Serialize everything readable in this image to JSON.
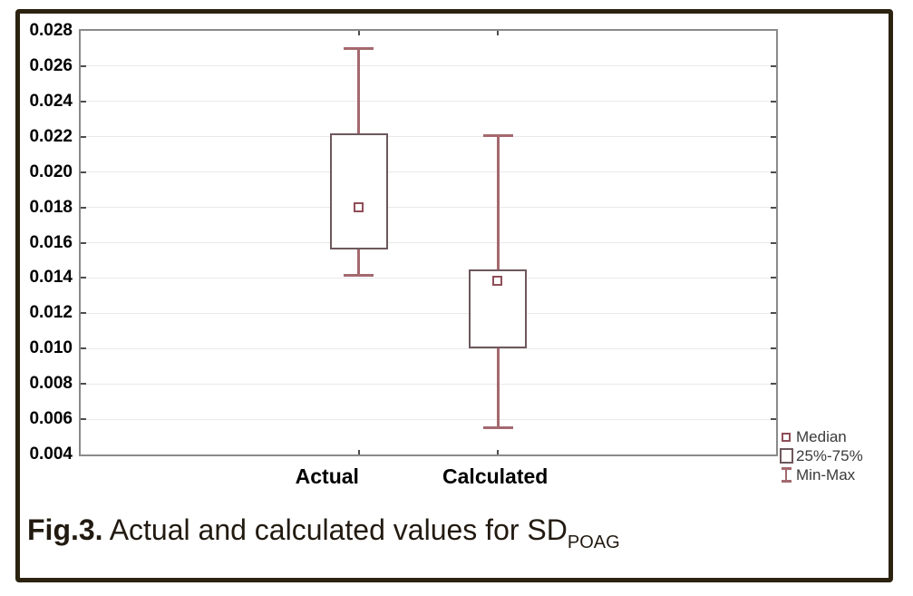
{
  "figure_caption": {
    "prefix": "Fig.3.",
    "text": " Actual and calculated values for SD",
    "subscript": "POAG"
  },
  "legend": {
    "items": [
      {
        "label": "Median",
        "icon": "median-marker-icon"
      },
      {
        "label": "25%-75%",
        "icon": "iqr-box-icon"
      },
      {
        "label": "Min-Max",
        "icon": "min-max-whisker-icon"
      }
    ]
  },
  "chart_data": {
    "type": "box",
    "title": "",
    "xlabel": "",
    "ylabel": "",
    "categories": [
      "Actual",
      "Calculated"
    ],
    "series": [
      {
        "name": "Actual",
        "min": 0.0141,
        "q1": 0.0156,
        "median": 0.018,
        "q3": 0.0222,
        "max": 0.027
      },
      {
        "name": "Calculated",
        "min": 0.0055,
        "q1": 0.01,
        "median": 0.0138,
        "q3": 0.0145,
        "max": 0.0221
      }
    ],
    "ylim": [
      0.004,
      0.028
    ],
    "ytick_step": 0.002,
    "ytick_labels": [
      "0.028",
      "0.026",
      "0.024",
      "0.022",
      "0.020",
      "0.018",
      "0.016",
      "0.014",
      "0.012",
      "0.010",
      "0.008",
      "0.006",
      "0.004"
    ],
    "grid": "horizontal",
    "legend_position": "outside-bottom-right",
    "colors": {
      "whisker": "#a4696e",
      "box_border": "#6e585c",
      "median_marker": "#8f4e57",
      "gridline": "#e9e9e9",
      "plot_frame": "#8a8a8a",
      "figure_border": "#2b2210",
      "tick": "#4d4d4d",
      "axis_text": "#000000",
      "legend_text": "#3a3a3a",
      "caption_text": "#221a10",
      "background": "#ffffff"
    }
  }
}
